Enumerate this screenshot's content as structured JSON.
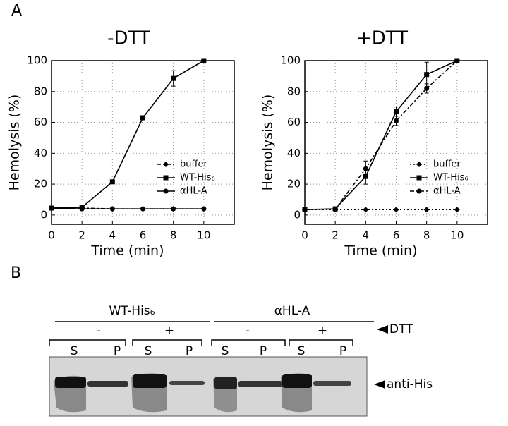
{
  "panel_a": "A",
  "chart_data": [
    {
      "type": "line",
      "title": "-DTT",
      "x_label": "Time (min)",
      "y_label": "Hemolysis (%)",
      "x": [
        0,
        2,
        4,
        6,
        8,
        10
      ],
      "xlim": [
        0,
        12
      ],
      "ylim": [
        -6,
        100
      ],
      "xticks": [
        0,
        2,
        4,
        6,
        8,
        10
      ],
      "yticks": [
        0,
        20,
        40,
        60,
        80,
        100
      ],
      "grid": true,
      "legend": "lower right",
      "series": [
        {
          "name": "buffer",
          "color": "#000000",
          "linestyle": "dashdot",
          "marker": "diamond",
          "values": [
            4.5,
            4.5,
            4,
            4,
            4,
            4
          ],
          "errors": [
            null,
            null,
            null,
            null,
            null,
            null
          ]
        },
        {
          "name": "WT-His₆",
          "color": "#000000",
          "linestyle": "solid",
          "marker": "square",
          "values": [
            4.5,
            5,
            21.5,
            63,
            88.5,
            100
          ],
          "errors": [
            null,
            null,
            null,
            null,
            5,
            null
          ]
        },
        {
          "name": "αHL-A",
          "color": "#000000",
          "linestyle": "solid",
          "marker": "circle",
          "values": [
            4.5,
            4,
            4,
            4,
            4,
            4
          ],
          "errors": [
            null,
            null,
            null,
            null,
            null,
            null
          ]
        }
      ]
    },
    {
      "type": "line",
      "title": "+DTT",
      "x_label": "Time (min)",
      "y_label": "Hemolysis (%)",
      "x": [
        0,
        2,
        4,
        6,
        8,
        10
      ],
      "xlim": [
        0,
        12
      ],
      "ylim": [
        -6,
        100
      ],
      "xticks": [
        0,
        2,
        4,
        6,
        8,
        10
      ],
      "yticks": [
        0,
        20,
        40,
        60,
        80,
        100
      ],
      "grid": true,
      "legend": "lower right",
      "series": [
        {
          "name": "buffer",
          "color": "#000000",
          "linestyle": "dotted",
          "marker": "diamond",
          "values": [
            3.5,
            3.5,
            3.5,
            3.5,
            3.5,
            3.5
          ],
          "errors": [
            null,
            null,
            null,
            null,
            null,
            null
          ]
        },
        {
          "name": "WT-His₆",
          "color": "#000000",
          "linestyle": "solid",
          "marker": "square",
          "values": [
            3.5,
            4,
            25,
            67,
            91,
            100
          ],
          "errors": [
            null,
            null,
            5,
            3,
            8,
            null
          ]
        },
        {
          "name": "αHL-A",
          "color": "#000000",
          "linestyle": "dashdot",
          "marker": "circle",
          "values": [
            3.5,
            4,
            30,
            61,
            82,
            100
          ],
          "errors": [
            null,
            null,
            5,
            3,
            3,
            null
          ]
        }
      ]
    }
  ],
  "blot": {
    "panel": "B",
    "groups": [
      "WT-His₆",
      "αHL-A"
    ],
    "treatments": [
      "-",
      "+",
      "-",
      "+"
    ],
    "fractions": [
      "S",
      "P",
      "S",
      "P",
      "S",
      "P",
      "S",
      "P"
    ],
    "row_label": "DTT",
    "band_label": "anti-His"
  }
}
